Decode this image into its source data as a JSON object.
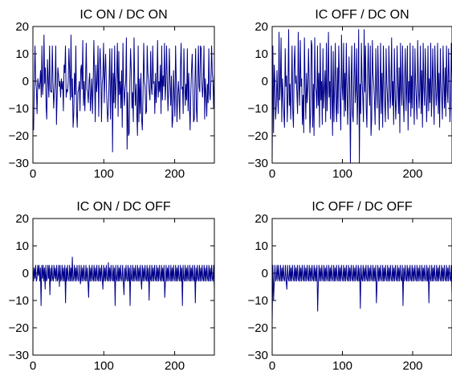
{
  "chart_data": [
    {
      "type": "line",
      "title": "IC ON / DC ON",
      "xlim": [
        0,
        256
      ],
      "ylim": [
        -30,
        20
      ],
      "xticks": [
        "0",
        "100",
        "200"
      ],
      "yticks": [
        "20",
        "10",
        "0",
        "−10",
        "−20",
        "−30"
      ],
      "grid": false,
      "line_color": "#00008b",
      "series": [
        {
          "values": [
            -14,
            -18,
            -1,
            13,
            0,
            -3,
            -12,
            1,
            -1,
            -3,
            -1,
            4,
            -6,
            13,
            -5,
            -1,
            17,
            -1,
            5,
            -9,
            -14,
            8,
            0,
            -6,
            13,
            -3,
            -4,
            -4,
            13,
            0,
            -10,
            -4,
            0,
            13,
            -16,
            -5,
            5,
            2,
            -2,
            0,
            -6,
            1,
            -3,
            0,
            -11,
            6,
            3,
            13,
            -6,
            -3,
            -4,
            0,
            12,
            3,
            -7,
            17,
            -6,
            1,
            -17,
            -12,
            3,
            -5,
            13,
            -11,
            -17,
            -4,
            -3,
            0,
            -11,
            4,
            6,
            -3,
            15,
            -9,
            0,
            -11,
            0,
            14,
            -3,
            -4,
            -8,
            0,
            3,
            -11,
            -5,
            1,
            -12,
            -1,
            15,
            2,
            -15,
            6,
            -4,
            0,
            13,
            -13,
            4,
            12,
            4,
            -15,
            -1,
            2,
            14,
            -8,
            3,
            10,
            -1,
            -9,
            -15,
            -10,
            0,
            12,
            -14,
            -1,
            12,
            -26,
            3,
            -8,
            13,
            -10,
            -2,
            3,
            14,
            -13,
            11,
            -5,
            0,
            -10,
            4,
            -17,
            14,
            -2,
            -9,
            -3,
            0,
            16,
            -25,
            -4,
            -20,
            -19,
            0,
            12,
            4,
            -10,
            -4,
            -15,
            16,
            0,
            -9,
            -1,
            -12,
            -20,
            13,
            -15,
            1,
            -12,
            3,
            -14,
            -18,
            -5,
            14,
            0,
            -2,
            -12,
            -11,
            13,
            3,
            0,
            -4,
            -7,
            11,
            -2,
            -5,
            13,
            -1,
            0,
            -12,
            3,
            -8,
            -1,
            15,
            -6,
            0,
            -4,
            6,
            -12,
            13,
            -7,
            2,
            -2,
            14,
            -7,
            -1,
            13,
            0,
            -11,
            -3,
            12,
            0,
            -9,
            2,
            -17,
            -14,
            4,
            -5,
            -13,
            13,
            0,
            -15,
            -6,
            0,
            -5,
            -14,
            5,
            14,
            -3,
            -2,
            -12,
            12,
            0,
            -9,
            -1,
            -7,
            12,
            -11,
            3,
            -9,
            -18,
            -4,
            4,
            10,
            -2,
            -15,
            -14,
            0,
            12,
            -10,
            -15,
            0,
            13,
            -2,
            -4,
            13,
            12,
            -1,
            -6,
            0,
            13,
            -14,
            1,
            -5,
            -13,
            -1,
            -8,
            12,
            -4,
            -7,
            0,
            13,
            3,
            0,
            -10,
            3
          ]
        }
      ]
    },
    {
      "type": "line",
      "title": "IC OFF / DC ON",
      "xlim": [
        0,
        256
      ],
      "ylim": [
        -30,
        20
      ],
      "xticks": [
        "0",
        "100",
        "200"
      ],
      "yticks": [
        "20",
        "10",
        "0",
        "−10",
        "−20",
        "−30"
      ],
      "grid": false,
      "line_color": "#00008b",
      "series": [
        {
          "values": [
            -29,
            13,
            -19,
            6,
            0,
            -14,
            -9,
            4,
            -6,
            -12,
            18,
            -7,
            -1,
            16,
            -15,
            1,
            -5,
            -12,
            -17,
            12,
            -2,
            2,
            -15,
            -4,
            19,
            -9,
            -1,
            -14,
            -3,
            13,
            -11,
            -17,
            5,
            13,
            -1,
            2,
            -4,
            -12,
            18,
            -1,
            -9,
            15,
            -2,
            1,
            -16,
            -5,
            -19,
            16,
            -2,
            -14,
            3,
            -8,
            -2,
            12,
            -1,
            -19,
            -12,
            15,
            13,
            -17,
            -1,
            -20,
            16,
            -2,
            -4,
            -10,
            13,
            -9,
            3,
            -17,
            14,
            -7,
            0,
            -16,
            12,
            -10,
            -3,
            4,
            -15,
            14,
            -11,
            -2,
            18,
            -6,
            0,
            -14,
            13,
            -4,
            -20,
            11,
            -15,
            -2,
            14,
            -9,
            -15,
            5,
            -12,
            13,
            1,
            -8,
            -18,
            17,
            -2,
            -7,
            14,
            -13,
            3,
            -11,
            14,
            -1,
            -16,
            -5,
            9,
            -4,
            -31,
            -1,
            13,
            -12,
            -15,
            0,
            14,
            -8,
            -3,
            12,
            -16,
            -4,
            19,
            -31,
            -1,
            -12,
            14,
            0,
            -6,
            -15,
            19,
            -4,
            13,
            -10,
            -17,
            2,
            14,
            -1,
            -9,
            13,
            -20,
            -14,
            15,
            3,
            -1,
            -7,
            -16,
            12,
            -2,
            -10,
            13,
            0,
            -18,
            -5,
            14,
            -12,
            3,
            -17,
            13,
            0,
            -8,
            -15,
            12,
            -1,
            -6,
            -14,
            13,
            2,
            -10,
            -4,
            16,
            -9,
            0,
            -16,
            12,
            -3,
            -14,
            -7,
            13,
            0,
            -12,
            5,
            -19,
            14,
            -2,
            -9,
            13,
            -6,
            -15,
            1,
            12,
            -11,
            -3,
            13,
            -18,
            0,
            -8,
            14,
            -13,
            2,
            -10,
            13,
            -4,
            -16,
            12,
            -1,
            -7,
            -14,
            15,
            0,
            -10,
            -3,
            13,
            -12,
            4,
            -17,
            14,
            -2,
            -9,
            12,
            0,
            -15,
            -6,
            13,
            -11,
            1,
            -8,
            14,
            -13,
            -2,
            12,
            -5,
            -16,
            13,
            0,
            -9,
            -4,
            14,
            -12,
            3,
            -17,
            12,
            -1,
            -6,
            -14,
            13,
            0,
            -10,
            5,
            -13,
            13,
            -3,
            -8,
            12,
            1,
            -15,
            -7,
            14,
            0
          ]
        }
      ]
    },
    {
      "type": "line",
      "title": "IC ON / DC OFF",
      "xlim": [
        0,
        256
      ],
      "ylim": [
        -30,
        20
      ],
      "xticks": [
        "0",
        "100",
        "200"
      ],
      "yticks": [
        "20",
        "10",
        "0",
        "−10",
        "−20",
        "−30"
      ],
      "grid": false,
      "line_color": "#00008b",
      "series": [
        {
          "values": [
            3,
            -3,
            2,
            -2,
            3,
            -3,
            -2,
            3,
            -1,
            3,
            -3,
            2,
            -12,
            3,
            -2,
            3,
            -3,
            2,
            -6,
            3,
            -3,
            -2,
            3,
            -2,
            3,
            -8,
            2,
            -3,
            3,
            -2,
            -3,
            3,
            -2,
            2,
            -3,
            3,
            -3,
            -2,
            3,
            -5,
            3,
            -3,
            -2,
            3,
            -3,
            2,
            -3,
            3,
            -11,
            2,
            -3,
            3,
            -2,
            -3,
            3,
            -3,
            2,
            -3,
            6,
            -3,
            -2,
            3,
            -3,
            2,
            -3,
            3,
            -2,
            -3,
            3,
            -2,
            -4,
            3,
            -3,
            2,
            -3,
            3,
            -2,
            -3,
            3,
            -3,
            2,
            -3,
            -9,
            3,
            -3,
            2,
            -3,
            3,
            -2,
            -3,
            3,
            -3,
            2,
            -3,
            3,
            -2,
            -3,
            3,
            -3,
            2,
            -3,
            3,
            -2,
            -6,
            3,
            -3,
            2,
            -3,
            3,
            -2,
            -3,
            4,
            -3,
            2,
            -3,
            3,
            -2,
            -3,
            3,
            -3,
            2,
            -12,
            3,
            -2,
            -3,
            3,
            -3,
            2,
            -3,
            3,
            -2,
            -3,
            3,
            -3,
            -8,
            2,
            -3,
            3,
            -2,
            -3,
            3,
            -3,
            2,
            -12,
            3,
            -2,
            -3,
            3,
            -3,
            2,
            -3,
            3,
            -2,
            -3,
            3,
            -3,
            2,
            -3,
            3,
            -2,
            -6,
            3,
            -3,
            2,
            -3,
            3,
            -2,
            -3,
            3,
            -3,
            2,
            -10,
            3,
            -2,
            -3,
            3,
            -3,
            2,
            -3,
            3,
            -2,
            -3,
            3,
            -3,
            2,
            -3,
            3,
            -2,
            -3,
            3,
            -3,
            2,
            -3,
            3,
            -9,
            -3,
            3,
            -3,
            2,
            -3,
            3,
            -2,
            -3,
            3,
            -3,
            2,
            -3,
            3,
            -2,
            -3,
            3,
            -3,
            2,
            -3,
            3,
            -2,
            -3,
            3,
            -3,
            2,
            -12,
            3,
            -2,
            -3,
            3,
            -3,
            2,
            -3,
            3,
            -2,
            -3,
            3,
            -3,
            2,
            -3,
            3,
            -2,
            -3,
            3,
            -11,
            2,
            -3,
            3,
            -2,
            -3,
            3,
            -3,
            2,
            -3,
            3,
            -2,
            -3,
            3,
            -3,
            2,
            -3,
            3,
            -2,
            -3,
            3,
            -3,
            2,
            -3,
            3,
            -2,
            -3,
            3,
            -6
          ]
        }
      ]
    },
    {
      "type": "line",
      "title": "IC OFF / DC OFF",
      "xlim": [
        0,
        256
      ],
      "ylim": [
        -30,
        20
      ],
      "xticks": [
        "0",
        "100",
        "200"
      ],
      "yticks": [
        "20",
        "10",
        "0",
        "−10",
        "−20",
        "−30"
      ],
      "grid": false,
      "line_color": "#00008b",
      "series": [
        {
          "values": [
            -19,
            3,
            -10,
            -3,
            3,
            -3,
            -2,
            3,
            -3,
            3,
            -2,
            -3,
            3,
            -3,
            2,
            -3,
            3,
            -2,
            -3,
            3,
            -3,
            -6,
            3,
            -2,
            -3,
            3,
            -3,
            2,
            -3,
            3,
            -2,
            -3,
            3,
            -3,
            2,
            -3,
            3,
            -2,
            -3,
            3,
            -3,
            2,
            -3,
            3,
            -2,
            -3,
            3,
            -3,
            2,
            -3,
            3,
            -2,
            -3,
            3,
            -3,
            2,
            -3,
            3,
            -2,
            -3,
            3,
            -3,
            2,
            -3,
            3,
            -14,
            -3,
            3,
            -3,
            2,
            -3,
            3,
            -2,
            -3,
            3,
            -3,
            2,
            -3,
            3,
            -2,
            -3,
            3,
            -3,
            2,
            -3,
            3,
            -2,
            -3,
            3,
            -3,
            2,
            -3,
            3,
            -2,
            -3,
            3,
            -3,
            2,
            -3,
            3,
            -2,
            -3,
            3,
            -3,
            2,
            -3,
            3,
            -2,
            -3,
            3,
            -3,
            2,
            -3,
            3,
            -2,
            -3,
            3,
            -3,
            2,
            -3,
            3,
            -2,
            -3,
            3,
            -3,
            2,
            -13,
            3,
            -2,
            -3,
            3,
            -3,
            2,
            -3,
            3,
            -2,
            -3,
            3,
            -3,
            2,
            -3,
            3,
            -2,
            -3,
            3,
            -3,
            2,
            -3,
            3,
            -11,
            -3,
            3,
            -3,
            2,
            -3,
            3,
            -2,
            -3,
            3,
            -3,
            2,
            -3,
            3,
            -2,
            -3,
            3,
            -3,
            2,
            -3,
            3,
            -2,
            -3,
            3,
            -3,
            2,
            -3,
            3,
            -2,
            -3,
            3,
            -3,
            2,
            -3,
            3,
            -2,
            -3,
            3,
            -12,
            2,
            -3,
            3,
            -2,
            -3,
            3,
            -3,
            2,
            -3,
            3,
            -2,
            -3,
            3,
            -3,
            2,
            -3,
            3,
            -2,
            -3,
            3,
            -3,
            2,
            -3,
            3,
            -2,
            -3,
            3,
            -3,
            2,
            -3,
            3,
            -2,
            -3,
            3,
            -3,
            2,
            -11,
            3,
            -2,
            -3,
            3,
            -3,
            2,
            -3,
            3,
            -2,
            -3,
            3,
            -3,
            2,
            -3,
            3,
            -2,
            -3,
            3,
            -3,
            2,
            -3,
            3,
            -2,
            -3,
            3,
            -3,
            2,
            -3,
            3,
            -2,
            -3,
            3,
            -8
          ]
        }
      ]
    }
  ]
}
